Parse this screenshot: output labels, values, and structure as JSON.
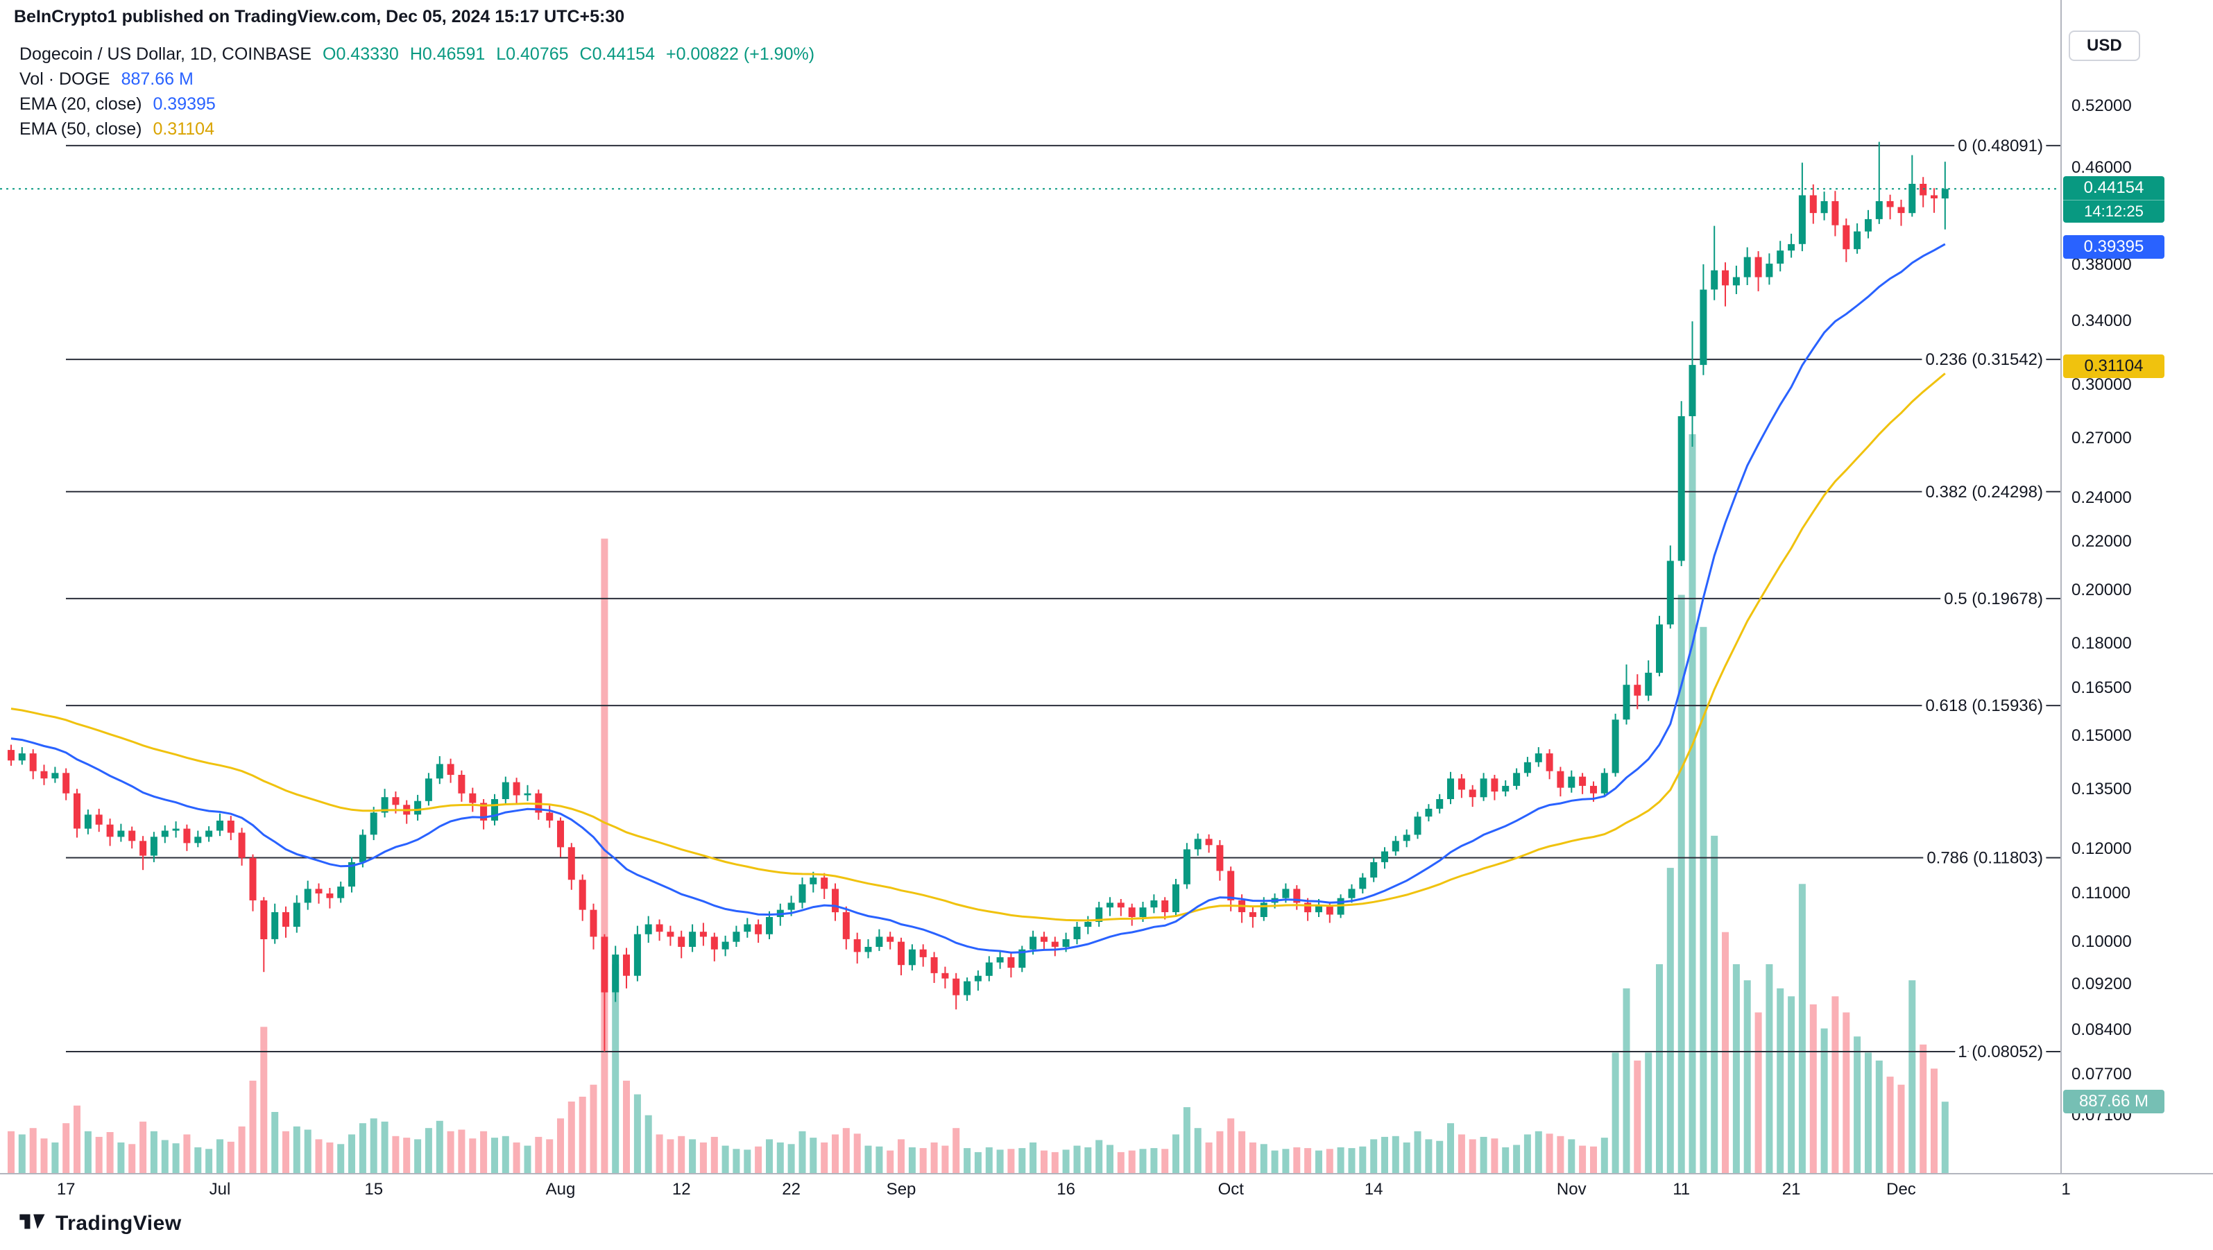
{
  "header": {
    "attribution": "BeInCrypto1 published on TradingView.com, Dec 05, 2024 15:17 UTC+5:30"
  },
  "legend": {
    "title": "Dogecoin / US Dollar, 1D, COINBASE",
    "ohlc": {
      "o": "O0.43330",
      "h": "H0.46591",
      "l": "L0.40765",
      "c": "C0.44154",
      "change": "+0.00822 (+1.90%)"
    },
    "vol_label": "Vol · DOGE",
    "vol_value": "887.66 M",
    "ema20_label": "EMA (20, close)",
    "ema20_value": "0.39395",
    "ema50_label": "EMA (50, close)",
    "ema50_value": "0.31104"
  },
  "axis": {
    "currency_button": "USD",
    "price_labels": [
      "0.52000",
      "0.46000",
      "0.38000",
      "0.34000",
      "0.30000",
      "0.27000",
      "0.24000",
      "0.22000",
      "0.20000",
      "0.18000",
      "0.16500",
      "0.15000",
      "0.13500",
      "0.12000",
      "0.11000",
      "0.10000",
      "0.09200",
      "0.08400",
      "0.07700",
      "0.07100"
    ],
    "time_labels": [
      {
        "index": 5,
        "label": "17"
      },
      {
        "index": 19,
        "label": "Jul"
      },
      {
        "index": 33,
        "label": "15"
      },
      {
        "index": 50,
        "label": "Aug"
      },
      {
        "index": 61,
        "label": "12"
      },
      {
        "index": 71,
        "label": "22"
      },
      {
        "index": 81,
        "label": "Sep"
      },
      {
        "index": 96,
        "label": "16"
      },
      {
        "index": 111,
        "label": "Oct"
      },
      {
        "index": 124,
        "label": "14"
      },
      {
        "index": 142,
        "label": "Nov"
      },
      {
        "index": 152,
        "label": "11"
      },
      {
        "index": 162,
        "label": "21"
      },
      {
        "index": 172,
        "label": "Dec"
      },
      {
        "index": 187,
        "label": "1"
      }
    ],
    "badges": {
      "price": {
        "value": "0.44154",
        "countdown": "14:12:25"
      },
      "ema20": "0.39395",
      "ema50": "0.31104",
      "volume": "887.66 M"
    }
  },
  "footer": {
    "brand": "TradingView"
  },
  "colors": {
    "up": "#089981",
    "down": "#F23645",
    "vol_up": "rgba(8,153,129,0.45)",
    "vol_down": "rgba(242,54,69,0.40)",
    "ema20": "#2962FF",
    "ema50": "#F0C20E",
    "fib_line": "#2A2E39",
    "fib_text": "#131722",
    "current_line": "#089981",
    "vol_badge": "#76BFB4",
    "axis_text": "#131722"
  },
  "chart_data": {
    "type": "candlestick",
    "title": "Dogecoin / US Dollar, 1D, COINBASE",
    "scale": "log",
    "interval": "1D",
    "x_start_date": "2024-06-12",
    "ylim": [
      0.065,
      0.56
    ],
    "volume_unit": "M",
    "volume_axis_max": 9200,
    "current_price": 0.44154,
    "fib_levels": [
      {
        "label": "0 (0.48091)",
        "price": 0.48091
      },
      {
        "label": "0.236 (0.31542)",
        "price": 0.31542
      },
      {
        "label": "0.382 (0.24298)",
        "price": 0.24298
      },
      {
        "label": "0.5 (0.19678)",
        "price": 0.19678
      },
      {
        "label": "0.618 (0.15936)",
        "price": 0.15936
      },
      {
        "label": "0.786 (0.11803)",
        "price": 0.11803
      },
      {
        "label": "1 (0.08052)",
        "price": 0.08052
      }
    ],
    "candles": [
      [
        0.146,
        0.1475,
        0.1415,
        0.143,
        520
      ],
      [
        0.143,
        0.1468,
        0.1418,
        0.145,
        480
      ],
      [
        0.145,
        0.1462,
        0.1378,
        0.14,
        560
      ],
      [
        0.14,
        0.1418,
        0.1362,
        0.138,
        430
      ],
      [
        0.138,
        0.1412,
        0.1368,
        0.1395,
        380
      ],
      [
        0.1395,
        0.1408,
        0.1322,
        0.134,
        620
      ],
      [
        0.134,
        0.1352,
        0.1228,
        0.125,
        840
      ],
      [
        0.125,
        0.1298,
        0.1236,
        0.1285,
        520
      ],
      [
        0.1285,
        0.13,
        0.1242,
        0.126,
        450
      ],
      [
        0.126,
        0.1275,
        0.1208,
        0.123,
        510
      ],
      [
        0.123,
        0.1262,
        0.1218,
        0.1245,
        380
      ],
      [
        0.1245,
        0.1255,
        0.1202,
        0.122,
        360
      ],
      [
        0.122,
        0.1232,
        0.1152,
        0.1185,
        640
      ],
      [
        0.1185,
        0.1242,
        0.117,
        0.123,
        520
      ],
      [
        0.123,
        0.1258,
        0.1215,
        0.1245,
        410
      ],
      [
        0.1245,
        0.1268,
        0.1228,
        0.125,
        370
      ],
      [
        0.125,
        0.126,
        0.1196,
        0.1215,
        480
      ],
      [
        0.1215,
        0.1245,
        0.1205,
        0.123,
        320
      ],
      [
        0.123,
        0.1256,
        0.1218,
        0.1245,
        300
      ],
      [
        0.1245,
        0.1288,
        0.1232,
        0.127,
        420
      ],
      [
        0.127,
        0.1282,
        0.1222,
        0.124,
        390
      ],
      [
        0.124,
        0.1252,
        0.1162,
        0.118,
        580
      ],
      [
        0.118,
        0.1188,
        0.1062,
        0.1085,
        1150
      ],
      [
        0.1085,
        0.1092,
        0.0942,
        0.1005,
        1820
      ],
      [
        0.1005,
        0.1078,
        0.0996,
        0.106,
        760
      ],
      [
        0.106,
        0.1072,
        0.1008,
        0.103,
        520
      ],
      [
        0.103,
        0.1096,
        0.1018,
        0.108,
        580
      ],
      [
        0.108,
        0.1128,
        0.1065,
        0.111,
        540
      ],
      [
        0.111,
        0.1122,
        0.1078,
        0.11,
        420
      ],
      [
        0.11,
        0.1112,
        0.1068,
        0.109,
        380
      ],
      [
        0.109,
        0.1126,
        0.108,
        0.1115,
        360
      ],
      [
        0.1115,
        0.1182,
        0.1102,
        0.117,
        480
      ],
      [
        0.117,
        0.1248,
        0.1158,
        0.1235,
        620
      ],
      [
        0.1235,
        0.1305,
        0.1222,
        0.129,
        680
      ],
      [
        0.129,
        0.1352,
        0.1278,
        0.133,
        640
      ],
      [
        0.133,
        0.1345,
        0.1288,
        0.131,
        460
      ],
      [
        0.131,
        0.1322,
        0.1262,
        0.1285,
        440
      ],
      [
        0.1285,
        0.1336,
        0.127,
        0.132,
        420
      ],
      [
        0.132,
        0.1395,
        0.1308,
        0.138,
        560
      ],
      [
        0.138,
        0.1442,
        0.1365,
        0.142,
        650
      ],
      [
        0.142,
        0.1435,
        0.1368,
        0.139,
        520
      ],
      [
        0.139,
        0.1402,
        0.1318,
        0.134,
        540
      ],
      [
        0.134,
        0.1355,
        0.1292,
        0.1315,
        430
      ],
      [
        0.1315,
        0.1325,
        0.1248,
        0.127,
        520
      ],
      [
        0.127,
        0.1338,
        0.1258,
        0.1325,
        440
      ],
      [
        0.1325,
        0.1385,
        0.1312,
        0.137,
        460
      ],
      [
        0.137,
        0.1382,
        0.1315,
        0.1335,
        380
      ],
      [
        0.1335,
        0.1362,
        0.132,
        0.134,
        340
      ],
      [
        0.134,
        0.135,
        0.1272,
        0.129,
        450
      ],
      [
        0.129,
        0.1308,
        0.1252,
        0.127,
        420
      ],
      [
        0.127,
        0.1278,
        0.1182,
        0.1205,
        680
      ],
      [
        0.1205,
        0.1215,
        0.1108,
        0.113,
        890
      ],
      [
        0.113,
        0.1142,
        0.1042,
        0.1065,
        950
      ],
      [
        0.1065,
        0.1078,
        0.0985,
        0.101,
        1100
      ],
      [
        0.101,
        0.1015,
        0.0805,
        0.0905,
        7900
      ],
      [
        0.0905,
        0.0992,
        0.0888,
        0.0975,
        2600
      ],
      [
        0.0975,
        0.0988,
        0.0912,
        0.0935,
        1150
      ],
      [
        0.0935,
        0.1032,
        0.0925,
        0.1015,
        980
      ],
      [
        0.1015,
        0.1052,
        0.0998,
        0.1035,
        720
      ],
      [
        0.1035,
        0.1045,
        0.1002,
        0.102,
        480
      ],
      [
        0.102,
        0.1032,
        0.0992,
        0.101,
        420
      ],
      [
        0.101,
        0.1022,
        0.0968,
        0.099,
        460
      ],
      [
        0.099,
        0.1035,
        0.098,
        0.102,
        420
      ],
      [
        0.102,
        0.1038,
        0.0992,
        0.101,
        380
      ],
      [
        0.101,
        0.1018,
        0.0962,
        0.0985,
        450
      ],
      [
        0.0985,
        0.1012,
        0.0972,
        0.1,
        340
      ],
      [
        0.1,
        0.1032,
        0.099,
        0.102,
        300
      ],
      [
        0.102,
        0.1048,
        0.1008,
        0.1035,
        290
      ],
      [
        0.1035,
        0.1045,
        0.0998,
        0.1015,
        330
      ],
      [
        0.1015,
        0.1062,
        0.1005,
        0.105,
        420
      ],
      [
        0.105,
        0.1078,
        0.1032,
        0.1065,
        380
      ],
      [
        0.1065,
        0.1095,
        0.1052,
        0.108,
        360
      ],
      [
        0.108,
        0.1135,
        0.1068,
        0.112,
        520
      ],
      [
        0.112,
        0.1148,
        0.1102,
        0.1135,
        440
      ],
      [
        0.1135,
        0.1145,
        0.1088,
        0.111,
        380
      ],
      [
        0.111,
        0.1122,
        0.1042,
        0.106,
        480
      ],
      [
        0.106,
        0.1072,
        0.0985,
        0.1005,
        560
      ],
      [
        0.1005,
        0.1018,
        0.0958,
        0.098,
        490
      ],
      [
        0.098,
        0.1005,
        0.0968,
        0.099,
        340
      ],
      [
        0.099,
        0.1025,
        0.0982,
        0.101,
        330
      ],
      [
        0.101,
        0.102,
        0.0985,
        0.1,
        280
      ],
      [
        0.1,
        0.1008,
        0.0936,
        0.0955,
        420
      ],
      [
        0.0955,
        0.0995,
        0.0945,
        0.0985,
        320
      ],
      [
        0.0985,
        0.0995,
        0.0952,
        0.097,
        310
      ],
      [
        0.097,
        0.098,
        0.0922,
        0.094,
        380
      ],
      [
        0.094,
        0.0952,
        0.0912,
        0.093,
        340
      ],
      [
        0.093,
        0.094,
        0.0875,
        0.09,
        560
      ],
      [
        0.09,
        0.0932,
        0.089,
        0.0925,
        310
      ],
      [
        0.0925,
        0.0945,
        0.0908,
        0.0935,
        260
      ],
      [
        0.0935,
        0.0972,
        0.0925,
        0.096,
        320
      ],
      [
        0.096,
        0.0982,
        0.0948,
        0.097,
        290
      ],
      [
        0.097,
        0.0978,
        0.0932,
        0.095,
        300
      ],
      [
        0.095,
        0.0992,
        0.0942,
        0.0985,
        310
      ],
      [
        0.0985,
        0.1022,
        0.0975,
        0.101,
        380
      ],
      [
        0.101,
        0.102,
        0.0985,
        0.1,
        280
      ],
      [
        0.1,
        0.101,
        0.0972,
        0.099,
        260
      ],
      [
        0.099,
        0.1018,
        0.098,
        0.1005,
        290
      ],
      [
        0.1005,
        0.104,
        0.0995,
        0.103,
        340
      ],
      [
        0.103,
        0.1052,
        0.1015,
        0.104,
        320
      ],
      [
        0.104,
        0.1082,
        0.103,
        0.107,
        410
      ],
      [
        0.107,
        0.1092,
        0.1052,
        0.108,
        350
      ],
      [
        0.108,
        0.1088,
        0.1052,
        0.107,
        260
      ],
      [
        0.107,
        0.1078,
        0.1032,
        0.105,
        280
      ],
      [
        0.105,
        0.1082,
        0.104,
        0.107,
        300
      ],
      [
        0.107,
        0.1098,
        0.1058,
        0.1085,
        310
      ],
      [
        0.1085,
        0.1092,
        0.1045,
        0.106,
        300
      ],
      [
        0.106,
        0.1132,
        0.1052,
        0.112,
        480
      ],
      [
        0.112,
        0.1215,
        0.111,
        0.12,
        820
      ],
      [
        0.12,
        0.1238,
        0.1185,
        0.1225,
        560
      ],
      [
        0.1225,
        0.1236,
        0.1192,
        0.121,
        380
      ],
      [
        0.121,
        0.1222,
        0.1128,
        0.115,
        520
      ],
      [
        0.115,
        0.116,
        0.1062,
        0.1085,
        680
      ],
      [
        0.1085,
        0.1098,
        0.1038,
        0.106,
        520
      ],
      [
        0.106,
        0.1072,
        0.1028,
        0.105,
        380
      ],
      [
        0.105,
        0.1092,
        0.1042,
        0.108,
        360
      ],
      [
        0.108,
        0.11,
        0.1068,
        0.109,
        280
      ],
      [
        0.109,
        0.1122,
        0.108,
        0.111,
        300
      ],
      [
        0.111,
        0.1118,
        0.1065,
        0.108,
        320
      ],
      [
        0.108,
        0.109,
        0.1042,
        0.106,
        310
      ],
      [
        0.106,
        0.1088,
        0.105,
        0.1075,
        280
      ],
      [
        0.1075,
        0.1082,
        0.1038,
        0.1055,
        300
      ],
      [
        0.1055,
        0.1098,
        0.1048,
        0.109,
        320
      ],
      [
        0.109,
        0.112,
        0.108,
        0.111,
        310
      ],
      [
        0.111,
        0.1145,
        0.11,
        0.1135,
        330
      ],
      [
        0.1135,
        0.118,
        0.1125,
        0.117,
        420
      ],
      [
        0.117,
        0.1205,
        0.1155,
        0.1195,
        450
      ],
      [
        0.1195,
        0.1232,
        0.1185,
        0.122,
        460
      ],
      [
        0.122,
        0.1248,
        0.1205,
        0.1235,
        380
      ],
      [
        0.1235,
        0.1292,
        0.1225,
        0.128,
        520
      ],
      [
        0.128,
        0.1312,
        0.1268,
        0.13,
        420
      ],
      [
        0.13,
        0.1338,
        0.1288,
        0.1325,
        400
      ],
      [
        0.1325,
        0.1398,
        0.1312,
        0.138,
        620
      ],
      [
        0.138,
        0.1392,
        0.1328,
        0.135,
        480
      ],
      [
        0.135,
        0.1362,
        0.1305,
        0.133,
        420
      ],
      [
        0.133,
        0.1395,
        0.132,
        0.138,
        450
      ],
      [
        0.138,
        0.139,
        0.1322,
        0.1345,
        430
      ],
      [
        0.1345,
        0.1375,
        0.1332,
        0.136,
        320
      ],
      [
        0.136,
        0.1408,
        0.135,
        0.1395,
        350
      ],
      [
        0.1395,
        0.144,
        0.1385,
        0.1425,
        480
      ],
      [
        0.1425,
        0.1468,
        0.1412,
        0.145,
        520
      ],
      [
        0.145,
        0.1462,
        0.1378,
        0.14,
        490
      ],
      [
        0.14,
        0.1412,
        0.1332,
        0.1355,
        460
      ],
      [
        0.1355,
        0.1402,
        0.1342,
        0.1385,
        420
      ],
      [
        0.1385,
        0.1395,
        0.1338,
        0.136,
        340
      ],
      [
        0.136,
        0.1372,
        0.1318,
        0.134,
        330
      ],
      [
        0.134,
        0.1408,
        0.133,
        0.1395,
        440
      ],
      [
        0.1395,
        0.1568,
        0.1385,
        0.155,
        1500
      ],
      [
        0.155,
        0.1728,
        0.1535,
        0.166,
        2300
      ],
      [
        0.166,
        0.1695,
        0.1582,
        0.1625,
        1400
      ],
      [
        0.1625,
        0.1742,
        0.1608,
        0.17,
        1500
      ],
      [
        0.17,
        0.1902,
        0.1688,
        0.187,
        2600
      ],
      [
        0.187,
        0.2185,
        0.1855,
        0.212,
        3800
      ],
      [
        0.212,
        0.2905,
        0.2098,
        0.282,
        7200
      ],
      [
        0.282,
        0.34,
        0.2655,
        0.312,
        9200
      ],
      [
        0.312,
        0.3805,
        0.3058,
        0.362,
        6800
      ],
      [
        0.362,
        0.4105,
        0.3545,
        0.376,
        4200
      ],
      [
        0.376,
        0.382,
        0.3502,
        0.365,
        3000
      ],
      [
        0.365,
        0.3795,
        0.3588,
        0.371,
        2600
      ],
      [
        0.371,
        0.3935,
        0.3652,
        0.386,
        2400
      ],
      [
        0.386,
        0.3905,
        0.3608,
        0.371,
        2000
      ],
      [
        0.371,
        0.3888,
        0.3655,
        0.381,
        2600
      ],
      [
        0.381,
        0.3985,
        0.3752,
        0.391,
        2300
      ],
      [
        0.391,
        0.4042,
        0.3855,
        0.396,
        2200
      ],
      [
        0.396,
        0.465,
        0.3905,
        0.436,
        3600
      ],
      [
        0.436,
        0.4455,
        0.4122,
        0.421,
        2100
      ],
      [
        0.421,
        0.4392,
        0.415,
        0.431,
        1800
      ],
      [
        0.431,
        0.4398,
        0.4022,
        0.411,
        2200
      ],
      [
        0.411,
        0.4165,
        0.3822,
        0.392,
        2000
      ],
      [
        0.392,
        0.4125,
        0.3885,
        0.406,
        1700
      ],
      [
        0.406,
        0.4235,
        0.4005,
        0.416,
        1500
      ],
      [
        0.416,
        0.4845,
        0.412,
        0.431,
        1400
      ],
      [
        0.431,
        0.4365,
        0.4158,
        0.426,
        1200
      ],
      [
        0.426,
        0.4322,
        0.4105,
        0.421,
        1100
      ],
      [
        0.421,
        0.472,
        0.418,
        0.446,
        2400
      ],
      [
        0.446,
        0.452,
        0.4258,
        0.436,
        1600
      ],
      [
        0.436,
        0.4422,
        0.4212,
        0.4333,
        1300
      ],
      [
        0.4333,
        0.46591,
        0.40765,
        0.44154,
        887.66
      ]
    ]
  }
}
